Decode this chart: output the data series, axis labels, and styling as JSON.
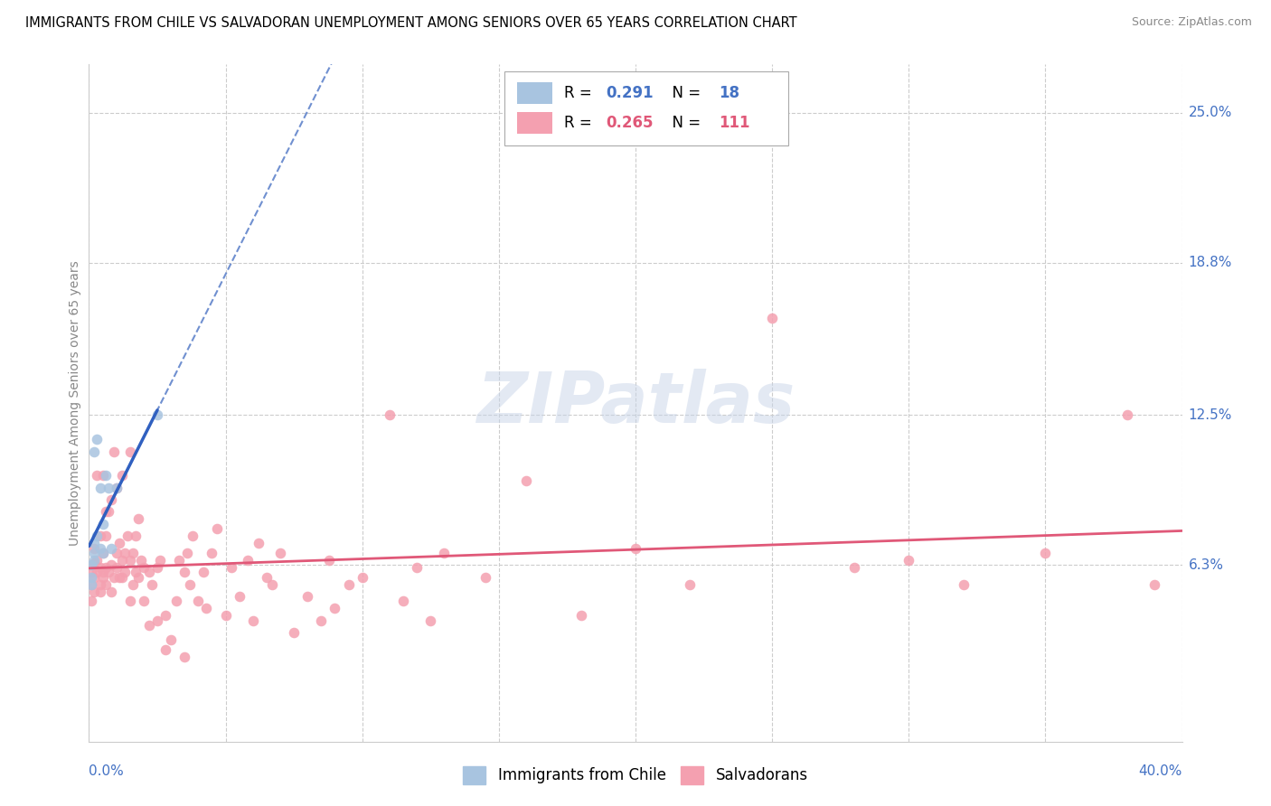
{
  "title": "IMMIGRANTS FROM CHILE VS SALVADORAN UNEMPLOYMENT AMONG SENIORS OVER 65 YEARS CORRELATION CHART",
  "source": "Source: ZipAtlas.com",
  "ylabel": "Unemployment Among Seniors over 65 years",
  "ytick_labels": [
    "6.3%",
    "12.5%",
    "18.8%",
    "25.0%"
  ],
  "ytick_values": [
    0.063,
    0.125,
    0.188,
    0.25
  ],
  "xlim": [
    0.0,
    0.4
  ],
  "ylim": [
    -0.01,
    0.27
  ],
  "chile_color": "#a8c4e0",
  "salvador_color": "#f4a0b0",
  "chile_trend_color": "#3060c0",
  "salvador_trend_color": "#e05878",
  "chile_dashed_color": "#7090d0",
  "watermark_text": "ZIPatlas",
  "chile_points_x": [
    0.001,
    0.001,
    0.001,
    0.002,
    0.002,
    0.002,
    0.002,
    0.003,
    0.003,
    0.004,
    0.004,
    0.005,
    0.005,
    0.006,
    0.007,
    0.008,
    0.01,
    0.025
  ],
  "chile_points_y": [
    0.063,
    0.058,
    0.055,
    0.065,
    0.068,
    0.072,
    0.11,
    0.075,
    0.115,
    0.07,
    0.095,
    0.08,
    0.068,
    0.1,
    0.095,
    0.07,
    0.095,
    0.125
  ],
  "salvador_points_x": [
    0.001,
    0.001,
    0.001,
    0.002,
    0.002,
    0.002,
    0.002,
    0.003,
    0.003,
    0.003,
    0.004,
    0.004,
    0.004,
    0.004,
    0.005,
    0.005,
    0.005,
    0.005,
    0.006,
    0.006,
    0.006,
    0.006,
    0.007,
    0.007,
    0.008,
    0.008,
    0.008,
    0.009,
    0.009,
    0.01,
    0.01,
    0.01,
    0.011,
    0.011,
    0.012,
    0.012,
    0.012,
    0.013,
    0.013,
    0.014,
    0.015,
    0.015,
    0.015,
    0.016,
    0.016,
    0.017,
    0.017,
    0.018,
    0.018,
    0.019,
    0.02,
    0.02,
    0.022,
    0.022,
    0.023,
    0.025,
    0.025,
    0.026,
    0.028,
    0.028,
    0.03,
    0.032,
    0.033,
    0.035,
    0.035,
    0.036,
    0.037,
    0.038,
    0.04,
    0.042,
    0.043,
    0.045,
    0.047,
    0.05,
    0.052,
    0.055,
    0.058,
    0.06,
    0.062,
    0.065,
    0.067,
    0.07,
    0.075,
    0.08,
    0.085,
    0.088,
    0.09,
    0.095,
    0.1,
    0.11,
    0.115,
    0.12,
    0.125,
    0.13,
    0.145,
    0.16,
    0.18,
    0.2,
    0.22,
    0.25,
    0.28,
    0.3,
    0.32,
    0.35,
    0.38,
    0.39
  ],
  "salvador_points_y": [
    0.06,
    0.055,
    0.048,
    0.058,
    0.064,
    0.07,
    0.052,
    0.06,
    0.065,
    0.1,
    0.055,
    0.062,
    0.075,
    0.052,
    0.058,
    0.068,
    0.1,
    0.06,
    0.055,
    0.062,
    0.075,
    0.085,
    0.06,
    0.085,
    0.063,
    0.052,
    0.09,
    0.058,
    0.11,
    0.062,
    0.068,
    0.095,
    0.058,
    0.072,
    0.065,
    0.058,
    0.1,
    0.06,
    0.068,
    0.075,
    0.048,
    0.065,
    0.11,
    0.055,
    0.068,
    0.06,
    0.075,
    0.058,
    0.082,
    0.065,
    0.062,
    0.048,
    0.06,
    0.038,
    0.055,
    0.062,
    0.04,
    0.065,
    0.028,
    0.042,
    0.032,
    0.048,
    0.065,
    0.06,
    0.025,
    0.068,
    0.055,
    0.075,
    0.048,
    0.06,
    0.045,
    0.068,
    0.078,
    0.042,
    0.062,
    0.05,
    0.065,
    0.04,
    0.072,
    0.058,
    0.055,
    0.068,
    0.035,
    0.05,
    0.04,
    0.065,
    0.045,
    0.055,
    0.058,
    0.125,
    0.048,
    0.062,
    0.04,
    0.068,
    0.058,
    0.098,
    0.042,
    0.07,
    0.055,
    0.165,
    0.062,
    0.065,
    0.055,
    0.068,
    0.125,
    0.055
  ],
  "chile_trend_slope": 3.5,
  "chile_trend_intercept": 0.045,
  "salvador_trend_slope": 0.125,
  "salvador_trend_intercept": 0.05
}
